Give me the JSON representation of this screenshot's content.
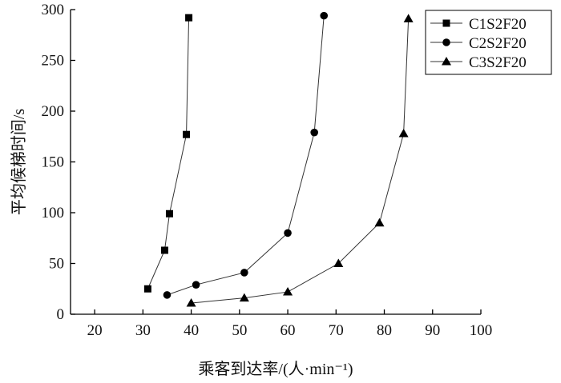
{
  "chart_data": {
    "type": "line",
    "title": "",
    "xlabel": "乘客到达率/(人·min⁻¹)",
    "ylabel": "平均候梯时间/s",
    "xlim": [
      15,
      100
    ],
    "ylim": [
      0,
      300
    ],
    "xticks": [
      20,
      30,
      40,
      50,
      60,
      70,
      80,
      90,
      100
    ],
    "yticks": [
      0,
      50,
      100,
      150,
      200,
      250,
      300
    ],
    "grid": false,
    "legend_position": "top-right",
    "series": [
      {
        "name": "C1S2F20",
        "marker": "square",
        "x": [
          31,
          34.5,
          35.5,
          39,
          39.5
        ],
        "y": [
          25,
          63,
          99,
          177,
          292
        ]
      },
      {
        "name": "C2S2F20",
        "marker": "circle",
        "x": [
          35,
          41,
          51,
          60,
          65.5,
          67.5
        ],
        "y": [
          19,
          29,
          41,
          80,
          179,
          294
        ]
      },
      {
        "name": "C3S2F20",
        "marker": "triangle",
        "x": [
          40,
          51,
          60,
          70.5,
          79,
          84,
          85
        ],
        "y": [
          11,
          16,
          22,
          50,
          90,
          178,
          291
        ]
      }
    ]
  }
}
